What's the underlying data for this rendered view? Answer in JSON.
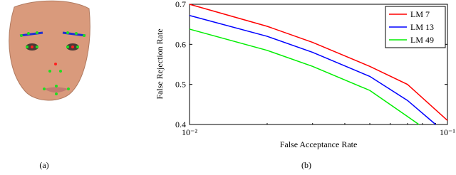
{
  "image_caption": "(a)",
  "chart_data": {
    "type": "line",
    "panel_label": "(b)",
    "x_label": "False Acceptance Rate",
    "y_label": "False Rejection Rate",
    "log_x": true,
    "legend": "top-right",
    "xlim": [
      0.01,
      0.1
    ],
    "xticks": [
      {
        "value": 0.01,
        "label": "10⁻²"
      },
      {
        "value": 0.1,
        "label": "10⁻¹"
      }
    ],
    "ylim": [
      0.4,
      0.7
    ],
    "yticks": [
      0.4,
      0.5,
      0.6,
      0.7
    ],
    "series": [
      {
        "name": "LM 7",
        "color": "#ff0000",
        "x": [
          0.01,
          0.02,
          0.03,
          0.05,
          0.07,
          0.1
        ],
        "values": [
          0.7,
          0.645,
          0.605,
          0.545,
          0.5,
          0.41
        ]
      },
      {
        "name": "LM 13",
        "color": "#0000ff",
        "x": [
          0.01,
          0.02,
          0.03,
          0.05,
          0.07,
          0.09
        ],
        "values": [
          0.672,
          0.62,
          0.58,
          0.52,
          0.46,
          0.4
        ]
      },
      {
        "name": "LM 49",
        "color": "#00ee00",
        "x": [
          0.01,
          0.02,
          0.03,
          0.05,
          0.07,
          0.0775
        ],
        "values": [
          0.638,
          0.585,
          0.545,
          0.485,
          0.42,
          0.4
        ]
      }
    ]
  }
}
